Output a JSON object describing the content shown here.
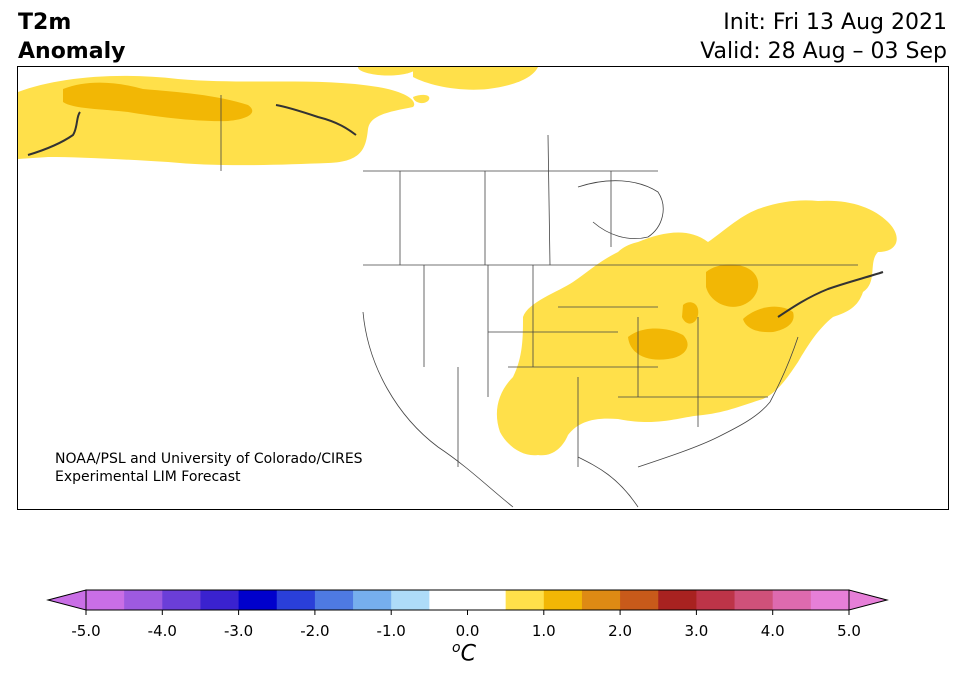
{
  "header": {
    "title_line1": "T2m",
    "title_line2": "Anomaly",
    "init_line": "Init: Fri 13 Aug 2021",
    "valid_line": "Valid: 28 Aug – 03 Sep"
  },
  "credit": {
    "line1": "NOAA/PSL and University of Colorado/CIRES",
    "line2": "Experimental LIM Forecast"
  },
  "colorbar": {
    "ticks": [
      "-5.0",
      "-4.0",
      "-3.0",
      "-2.0",
      "-1.0",
      "0.0",
      "1.0",
      "2.0",
      "3.0",
      "4.0",
      "5.0"
    ],
    "units_prefix": "o",
    "units_symbol": "C",
    "colors": [
      "#c96ee6",
      "#9e5ae0",
      "#6b3ed8",
      "#3a22cf",
      "#0000cc",
      "#2a3fd9",
      "#4e7ae3",
      "#76afee",
      "#aedcf8",
      "#ffffff",
      "#ffffff",
      "#ffe04a",
      "#f2b705",
      "#de8a14",
      "#c85a1a",
      "#a82220",
      "#bd3448",
      "#cf517a",
      "#de6aaf",
      "#e67fd8"
    ],
    "extend_low_color": "#c96ee6",
    "extend_high_color": "#e67fd8"
  },
  "map": {
    "land_fill": "#ffffff",
    "border_color": "#444444",
    "anomaly_colors": {
      "plus_0_5_to_1": "#ffe04a",
      "plus_1_to_1_5": "#f2b705"
    }
  }
}
